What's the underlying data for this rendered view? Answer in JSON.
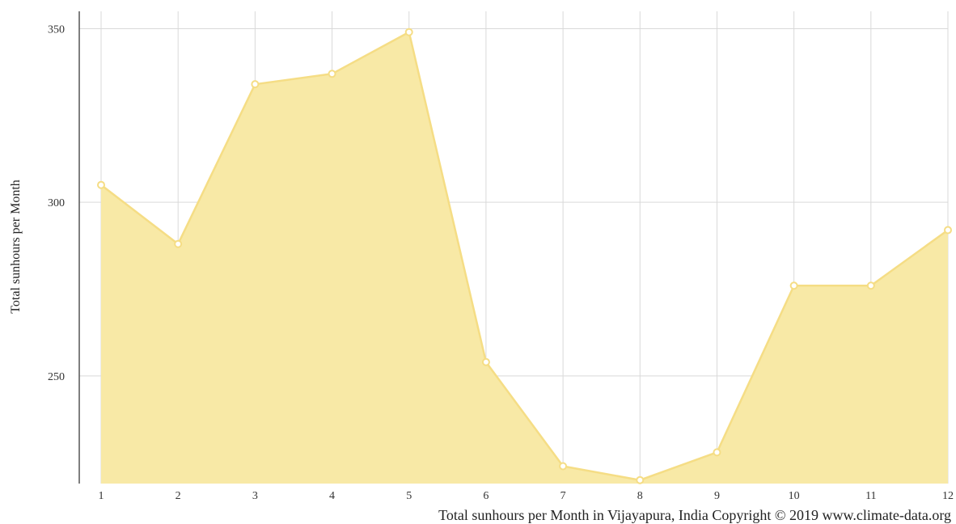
{
  "chart_data": {
    "type": "area",
    "categories": [
      "1",
      "2",
      "3",
      "4",
      "5",
      "6",
      "7",
      "8",
      "9",
      "10",
      "11",
      "12"
    ],
    "series": [
      {
        "values": [
          305,
          288,
          334,
          337,
          349,
          254,
          224,
          220,
          228,
          276,
          276,
          292
        ]
      }
    ],
    "ylabel": "Total sunhours per Month",
    "xlabel": "",
    "ylim": [
      219,
      355
    ],
    "yticks": [
      250,
      300,
      350
    ],
    "grid": true,
    "caption": "Total sunhours per Month in Vijayapura, India Copyright © 2019 www.climate-data.org",
    "colors": {
      "fill": "#f8e9a6",
      "line": "#f5dd85",
      "marker": "#ffffff",
      "grid": "#d9d9d9",
      "axis": "#555555"
    }
  }
}
